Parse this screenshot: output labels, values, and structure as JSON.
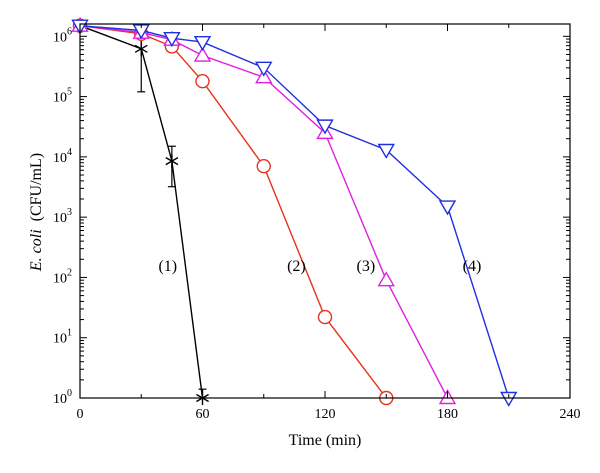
{
  "chart_data": {
    "type": "line",
    "xlabel": "Time (min)",
    "ylabel_italic": "E. coli",
    "ylabel_rest": "(CFU/mL)",
    "x_range": [
      0,
      240
    ],
    "y_range": [
      1,
      1600000
    ],
    "y_scale": "log",
    "x_ticks": [
      0,
      60,
      120,
      180,
      240
    ],
    "x_tick_labels": [
      "0",
      "60",
      "120",
      "180",
      "240"
    ],
    "y_ticks": [
      1,
      10,
      100,
      1000,
      10000,
      100000,
      1000000
    ],
    "y_tick_labels": [
      {
        "base": "10",
        "exp": "0"
      },
      {
        "base": "10",
        "exp": "1"
      },
      {
        "base": "10",
        "exp": "2"
      },
      {
        "base": "10",
        "exp": "3"
      },
      {
        "base": "10",
        "exp": "4"
      },
      {
        "base": "10",
        "exp": "5"
      },
      {
        "base": "10",
        "exp": "6"
      }
    ],
    "series": [
      {
        "label": "(1)",
        "color": "#000000",
        "marker": "asterisk",
        "x": [
          0,
          30,
          45,
          60
        ],
        "y": [
          1500000,
          620000,
          8500,
          1
        ],
        "err_low": [
          1500000,
          120000,
          3200,
          1
        ],
        "err_high": [
          1500000,
          1200000,
          15000,
          1.4
        ],
        "label_pos": {
          "x": 43,
          "y": 160
        }
      },
      {
        "label": "(2)",
        "color": "#e8321e",
        "marker": "circle",
        "x": [
          0,
          30,
          45,
          60,
          90,
          120,
          150
        ],
        "y": [
          1500000,
          1100000,
          680000,
          180000,
          7000,
          22,
          1
        ],
        "label_pos": {
          "x": 106,
          "y": 160
        }
      },
      {
        "label": "(3)",
        "color": "#e020e0",
        "marker": "triangle-up",
        "x": [
          0,
          30,
          45,
          60,
          90,
          120,
          150,
          180
        ],
        "y": [
          1500000,
          1150000,
          880000,
          480000,
          210000,
          25000,
          90,
          1
        ],
        "label_pos": {
          "x": 140,
          "y": 160
        }
      },
      {
        "label": "(4)",
        "color": "#1e30e0",
        "marker": "triangle-down",
        "x": [
          0,
          30,
          45,
          60,
          90,
          120,
          150,
          180,
          210
        ],
        "y": [
          1500000,
          1250000,
          930000,
          800000,
          300000,
          33000,
          13000,
          1500,
          1
        ],
        "label_pos": {
          "x": 192,
          "y": 160
        }
      }
    ]
  }
}
